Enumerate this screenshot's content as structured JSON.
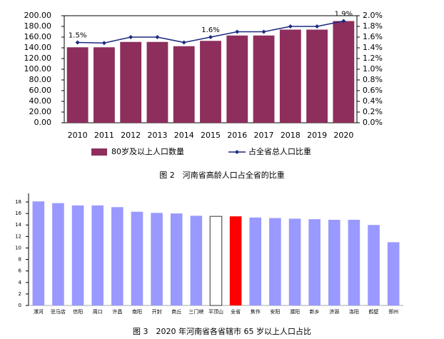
{
  "chart_data": [
    {
      "type": "combo",
      "title": "图 2　河南省高龄人口占全省的比重",
      "categories": [
        "2010",
        "2011",
        "2012",
        "2013",
        "2014",
        "2015",
        "2016",
        "2017",
        "2018",
        "2019",
        "2020"
      ],
      "series": [
        {
          "name": "80岁及以上人口数量",
          "type": "bar",
          "color": "#8e2e5c",
          "values": [
            141,
            141,
            151,
            151,
            143,
            153,
            163,
            163,
            174,
            174,
            190
          ]
        },
        {
          "name": "占全省总人口比重",
          "type": "line",
          "axis": "y2",
          "color": "#1c2a80",
          "values": [
            1.5,
            1.49,
            1.6,
            1.6,
            1.5,
            1.6,
            1.7,
            1.7,
            1.8,
            1.8,
            1.9
          ],
          "value_labels": [
            "1.5%",
            null,
            null,
            null,
            null,
            "1.6%",
            null,
            null,
            null,
            null,
            "1.9%"
          ]
        }
      ],
      "ylim": [
        0,
        200
      ],
      "yticks": [
        {
          "value": 0,
          "label": "0.00"
        },
        {
          "value": 20,
          "label": "20.00"
        },
        {
          "value": 40,
          "label": "40.00"
        },
        {
          "value": 60,
          "label": "60.00"
        },
        {
          "value": 80,
          "label": "80.00"
        },
        {
          "value": 100,
          "label": "100.00"
        },
        {
          "value": 120,
          "label": "120.00"
        },
        {
          "value": 140,
          "label": "140.00"
        },
        {
          "value": 160,
          "label": "160.00"
        },
        {
          "value": 180,
          "label": "180.00"
        },
        {
          "value": 200,
          "label": "200.00"
        }
      ],
      "y2lim": [
        0,
        2
      ],
      "y2ticks": [
        {
          "value": 0,
          "label": "0.0%"
        },
        {
          "value": 0.2,
          "label": "0.2%"
        },
        {
          "value": 0.4,
          "label": "0.4%"
        },
        {
          "value": 0.6,
          "label": "0.6%"
        },
        {
          "value": 0.8,
          "label": "0.8%"
        },
        {
          "value": 1.0,
          "label": "1.0%"
        },
        {
          "value": 1.2,
          "label": "1.2%"
        },
        {
          "value": 1.4,
          "label": "1.4%"
        },
        {
          "value": 1.6,
          "label": "1.6%"
        },
        {
          "value": 1.8,
          "label": "1.8%"
        },
        {
          "value": 2.0,
          "label": "2.0%"
        }
      ],
      "legend": "bottom"
    },
    {
      "type": "bar",
      "title": "图 3　2020 年河南省各省辖市 65 岁以上人口占比",
      "categories": [
        "漯河",
        "驻马店",
        "信阳",
        "周口",
        "许昌",
        "南阳",
        "开封",
        "商丘",
        "三门峡",
        "平顶山",
        "全省",
        "焦作",
        "安阳",
        "濮阳",
        "新乡",
        "济源",
        "洛阳",
        "鹤壁",
        "郑州"
      ],
      "values": [
        18.1,
        17.8,
        17.4,
        17.4,
        17.1,
        16.3,
        16.1,
        16.0,
        15.6,
        15.5,
        15.5,
        15.3,
        15.2,
        15.1,
        15.0,
        14.9,
        14.9,
        14.0,
        11.0
      ],
      "colors": [
        "#9999ff",
        "#9999ff",
        "#9999ff",
        "#9999ff",
        "#9999ff",
        "#9999ff",
        "#9999ff",
        "#9999ff",
        "#9999ff",
        "#ffffff",
        "#ff0000",
        "#9999ff",
        "#9999ff",
        "#9999ff",
        "#9999ff",
        "#9999ff",
        "#9999ff",
        "#9999ff",
        "#9999ff"
      ],
      "ylim": [
        0,
        18
      ],
      "yticks": [
        0,
        2,
        4,
        6,
        8,
        10,
        12,
        14,
        16,
        18
      ]
    }
  ]
}
